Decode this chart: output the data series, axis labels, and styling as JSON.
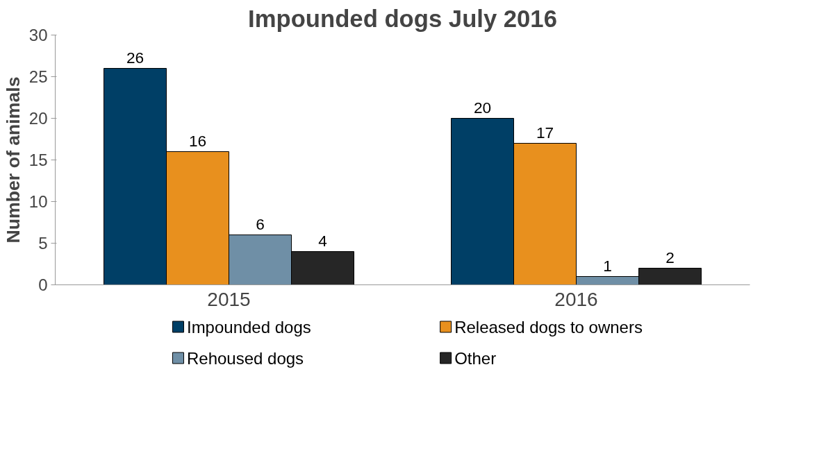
{
  "chart_data": {
    "type": "bar",
    "title": "Impounded dogs July 2016",
    "ylabel": "Number of animals",
    "categories": [
      "2015",
      "2016"
    ],
    "series": [
      {
        "name": "Impounded dogs",
        "color": "#003f66",
        "values": [
          26,
          20
        ]
      },
      {
        "name": "Released dogs to owners",
        "color": "#e8901e",
        "values": [
          16,
          17
        ]
      },
      {
        "name": "Rehoused dogs",
        "color": "#6f8fa6",
        "values": [
          6,
          1
        ]
      },
      {
        "name": "Other",
        "color": "#262626",
        "values": [
          4,
          2
        ]
      }
    ],
    "ylim": [
      0,
      30
    ],
    "yticks": [
      0,
      5,
      10,
      15,
      20,
      25,
      30
    ],
    "grid": false,
    "legend": "bottom",
    "data_labels": true
  }
}
